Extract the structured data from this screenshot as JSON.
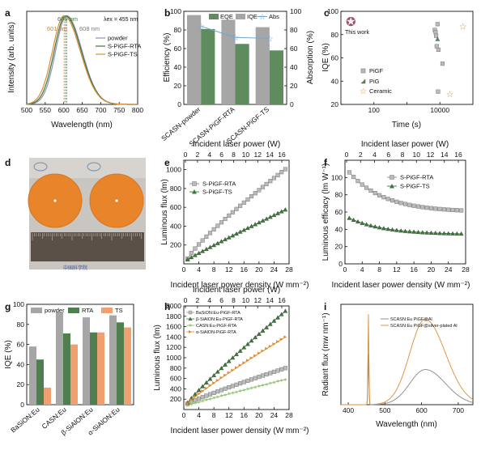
{
  "panels": {
    "a": {
      "label": "a",
      "xlabel": "Wavelength (nm)",
      "ylabel": "Intensity (arb. units)",
      "excitation_label": "λex = 455 nm",
      "peak_labels": [
        "605 nm",
        "601 nm",
        "608 nm"
      ],
      "peak_colors": [
        "#3b7a3b",
        "#e07b20",
        "#777777"
      ],
      "legend": [
        "powder",
        "S-PiGF-RTA",
        "S-PiGF-TS"
      ],
      "colors": [
        "#8f8fbf",
        "#3b7a3b",
        "#e08b30"
      ]
    },
    "b": {
      "label": "b",
      "ylabel_left": "Efficiency (%)",
      "ylabel_right": "Absorption (%)",
      "legend": [
        "EQE",
        "IQE",
        "Abs"
      ],
      "colors": {
        "EQE": "#5e8c5e",
        "IQE": "#a6a6a6",
        "Abs": "#6fa6d6"
      }
    },
    "c": {
      "label": "c",
      "xlabel": "Time (s)",
      "ylabel": "IQE (%)",
      "annotation": "This work",
      "legend": [
        "PiGF",
        "PiG",
        "Ceramic"
      ],
      "colors": {
        "star": "#a05070",
        "ceramic": "#e08b30",
        "pig": "#5e8c5e",
        "pigf": "#999999"
      }
    },
    "d": {
      "label": "d",
      "ruler_text": "中国科学院",
      "colors": {
        "phosphor": "#e8852a",
        "ruler": "#5a5048"
      }
    },
    "e": {
      "label": "e",
      "top_label": "Incident laser power (W)",
      "xlabel": "Incident laser power density (W mm⁻²)",
      "ylabel": "Luminous flux (lm)",
      "legend": [
        "S-PiGF-RTA",
        "S-PiGF-TS"
      ]
    },
    "f": {
      "label": "f",
      "top_label": "Incident laser power (W)",
      "xlabel": "Incident laser power density (W mm⁻²)",
      "ylabel": "Luminous efficacy (lm W⁻¹)",
      "legend": [
        "S-PiGF-RTA",
        "S-PiGF-TS"
      ]
    },
    "g": {
      "label": "g",
      "ylabel": "IQE (%)",
      "legend": [
        "powder",
        "RTA",
        "TS"
      ],
      "colors": [
        "#a6a6a6",
        "#4f7f4f",
        "#f0a070"
      ]
    },
    "h": {
      "label": "h",
      "top_label": "Incident laser power (W)",
      "xlabel": "Incident laser power density (W mm⁻²)",
      "ylabel": "Luminous flux (lm)",
      "legend": [
        "BaSiON:Eu-PiGF-RTA",
        "β-SiAlON:Eu-PiGF-RTA",
        "CASN:Eu-PiGF-RTA",
        "α-SiAlON-PiGF-RTA"
      ],
      "colors": [
        "#999999",
        "#3b7a3b",
        "#90c070",
        "#e08b30"
      ]
    },
    "i": {
      "label": "i",
      "xlabel": "Wavelength (nm)",
      "ylabel": "Radiant flux (mw nm⁻¹)",
      "legend": [
        "SCASN:Eu PiGF@Al",
        "SCASN:Eu PiGF@silver-plated Al"
      ],
      "colors": [
        "#888888",
        "#e08b30"
      ]
    }
  },
  "chart_data": [
    {
      "id": "a",
      "type": "line",
      "xlim": [
        500,
        800
      ],
      "ylim": [
        0,
        1.05
      ],
      "xticks": [
        500,
        550,
        600,
        650,
        700,
        750,
        800
      ],
      "series": [
        {
          "name": "powder",
          "peak": 608,
          "fwhm": 78,
          "amplitude": 1.0
        },
        {
          "name": "S-PiGF-RTA",
          "peak": 605,
          "fwhm": 80,
          "amplitude": 1.0
        },
        {
          "name": "S-PiGF-TS",
          "peak": 601,
          "fwhm": 82,
          "amplitude": 1.0
        }
      ],
      "markers": [
        605,
        601,
        608
      ]
    },
    {
      "id": "b",
      "type": "bar",
      "categories": [
        "SCASN-powder",
        "SCASN-PiGF-RTA",
        "SCASN-PiGF-TS"
      ],
      "ylim": [
        0,
        100
      ],
      "ylim_right": [
        0,
        100
      ],
      "yticks": [
        0,
        20,
        40,
        60,
        80,
        100
      ],
      "series": [
        {
          "name": "IQE",
          "values": [
            96,
            91,
            83
          ]
        },
        {
          "name": "EQE",
          "values": [
            81,
            65,
            58
          ]
        },
        {
          "name": "Abs",
          "values": [
            84,
            72,
            71
          ],
          "axis": "right"
        }
      ]
    },
    {
      "id": "c",
      "type": "scatter",
      "xscale": "log",
      "xlim": [
        10,
        100000
      ],
      "ylim": [
        20,
        100
      ],
      "xticks": [
        100,
        1000,
        10000
      ],
      "xtick_labels": [
        "100",
        "",
        "10000"
      ],
      "yticks": [
        20,
        40,
        60,
        80,
        100
      ],
      "series": [
        {
          "name": "This work",
          "points": [
            [
              20,
              91
            ]
          ]
        },
        {
          "name": "PiGF",
          "points": [
            [
              7000,
              84
            ],
            [
              7400,
              82
            ],
            [
              7700,
              79
            ],
            [
              8000,
              70
            ],
            [
              8500,
              89
            ],
            [
              9000,
              67
            ],
            [
              12000,
              55
            ],
            [
              8800,
              31
            ]
          ]
        },
        {
          "name": "PiG",
          "points": [
            [
              8500,
              76
            ]
          ]
        },
        {
          "name": "Ceramic",
          "points": [
            [
              50000,
              87
            ],
            [
              20000,
              29
            ]
          ]
        }
      ]
    },
    {
      "id": "e",
      "type": "line",
      "xlim": [
        0,
        28
      ],
      "ylim": [
        0,
        1100
      ],
      "xticks": [
        0,
        4,
        8,
        12,
        16,
        20,
        24,
        28
      ],
      "xticks_top": [
        0,
        2,
        4,
        6,
        8,
        10,
        12,
        14,
        16
      ],
      "yticks": [
        200,
        400,
        600,
        800,
        1000
      ],
      "series": [
        {
          "name": "S-PiGF-RTA",
          "x_end": 27,
          "y_start": 55,
          "y_end": 1005
        },
        {
          "name": "S-PiGF-TS",
          "x_end": 27,
          "y_start": 45,
          "y_end": 575
        }
      ]
    },
    {
      "id": "f",
      "type": "line",
      "xlim": [
        0,
        28
      ],
      "ylim": [
        0,
        120
      ],
      "xticks": [
        0,
        4,
        8,
        12,
        16,
        20,
        24,
        28
      ],
      "xticks_top": [
        0,
        2,
        4,
        6,
        8,
        10,
        12,
        14,
        16
      ],
      "yticks": [
        0,
        20,
        40,
        60,
        80,
        100
      ],
      "series": [
        {
          "name": "S-PiGF-RTA",
          "x_end": 27,
          "y_start": 106,
          "y_end": 60
        },
        {
          "name": "S-PiGF-TS",
          "x_end": 27,
          "y_start": 53,
          "y_end": 34
        }
      ]
    },
    {
      "id": "g",
      "type": "bar",
      "categories": [
        "BaSiON:Eu",
        "CASN:Eu",
        "β-SiAlON:Eu",
        "α-SiAlON:Eu"
      ],
      "ylim": [
        0,
        100
      ],
      "yticks": [
        0,
        20,
        40,
        60,
        80,
        100
      ],
      "series": [
        {
          "name": "powder",
          "values": [
            58,
            92,
            87,
            89
          ]
        },
        {
          "name": "RTA",
          "values": [
            45,
            71,
            72,
            82
          ]
        },
        {
          "name": "TS",
          "values": [
            17,
            60,
            72,
            77
          ]
        }
      ]
    },
    {
      "id": "h",
      "type": "line",
      "xlim": [
        0,
        28
      ],
      "ylim": [
        0,
        2000
      ],
      "xticks": [
        0,
        4,
        8,
        12,
        16,
        20,
        24,
        28
      ],
      "xticks_top": [
        0,
        2,
        4,
        6,
        8,
        10,
        12,
        14,
        16
      ],
      "yticks": [
        200,
        400,
        600,
        800,
        1000,
        1200,
        1400,
        1600,
        1800,
        2000
      ],
      "series": [
        {
          "name": "BaSiON:Eu-PiGF-RTA",
          "x_end": 27,
          "y_start": 110,
          "y_end": 800
        },
        {
          "name": "β-SiAlON:Eu-PiGF-RTA",
          "x_end": 27,
          "y_start": 130,
          "y_end": 1900
        },
        {
          "name": "CASN:Eu-PiGF-RTA",
          "x_end": 27,
          "y_start": 80,
          "y_end": 580
        },
        {
          "name": "α-SiAlON-PiGF-RTA",
          "x_end": 27,
          "y_start": 120,
          "y_end": 1400
        }
      ]
    },
    {
      "id": "i",
      "type": "line",
      "xlim": [
        380,
        740
      ],
      "ylim": [
        0,
        100
      ],
      "xticks": [
        400,
        500,
        600,
        700
      ],
      "series": [
        {
          "name": "SCASN:Eu PiGF@Al",
          "laser_peak": 50,
          "phosphor_peak": 35
        },
        {
          "name": "SCASN:Eu PiGF@silver-plated Al",
          "laser_peak": 90,
          "phosphor_peak": 85
        }
      ]
    }
  ]
}
